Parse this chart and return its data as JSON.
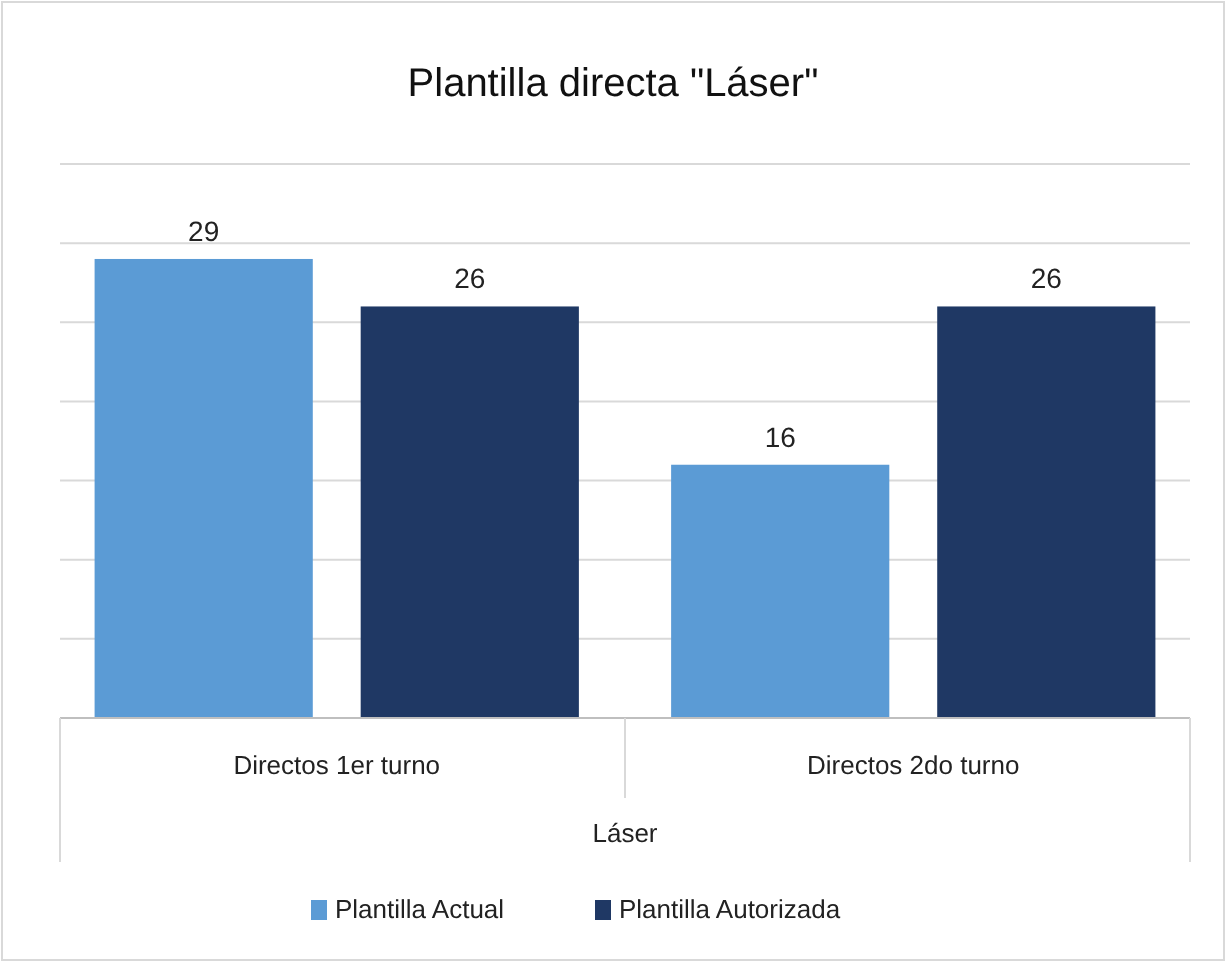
{
  "chart_data": {
    "type": "bar",
    "title": "Plantilla directa \"Láser\"",
    "xlabel": "Láser",
    "categories": [
      "Directos 1er turno",
      "Directos 2do turno"
    ],
    "series": [
      {
        "name": "Plantilla Actual",
        "color": "#5b9bd5",
        "values": [
          29,
          16
        ]
      },
      {
        "name": "Plantilla Autorizada",
        "color": "#1f3864",
        "values": [
          26,
          26
        ]
      }
    ],
    "ylim": [
      0,
      35
    ],
    "yticks": [
      {
        "value": 0,
        "label": null
      },
      {
        "value": 5,
        "label": null
      },
      {
        "value": 10,
        "label": null
      },
      {
        "value": 15,
        "label": null
      },
      {
        "value": 20,
        "label": null
      },
      {
        "value": 25,
        "label": null
      },
      {
        "value": 30,
        "label": null
      },
      {
        "value": 35,
        "label": null
      }
    ],
    "tick_labels": "x",
    "grid": "y",
    "data_labels": true,
    "legend": "bottom"
  }
}
